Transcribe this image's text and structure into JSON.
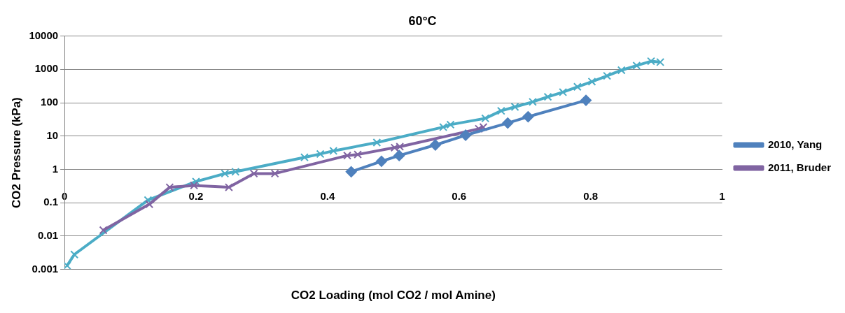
{
  "chart_data": {
    "type": "line",
    "title": "60°C",
    "xlabel": "CO2 Loading (mol CO2 / mol Amine)",
    "ylabel": "CO2 Pressure (kPa)",
    "xlim": [
      0,
      1
    ],
    "xticks": [
      0,
      0.2,
      0.4,
      0.6,
      0.8,
      1
    ],
    "ylim": [
      0.001,
      10000
    ],
    "yticks": [
      0.001,
      0.01,
      0.1,
      1,
      10,
      100,
      1000,
      10000
    ],
    "log": "y",
    "grid": "y",
    "legend": "right",
    "line_style": "solid",
    "series": [
      {
        "name": "2010, Yang",
        "color": "#4f81bd",
        "marker": "diamond",
        "x": [
          0.436,
          0.482,
          0.509,
          0.564,
          0.61,
          0.674,
          0.705,
          0.793
        ],
        "values": [
          0.85,
          1.75,
          2.6,
          5.4,
          10.6,
          24.6,
          38,
          118
        ]
      },
      {
        "name": "2011, Bruder",
        "color": "#8064a2",
        "marker": "cross",
        "x": [
          0.059,
          0.129,
          0.16,
          0.197,
          0.25,
          0.288,
          0.32,
          0.43,
          0.446,
          0.502,
          0.51,
          0.63,
          0.637
        ],
        "values": [
          0.015,
          0.09,
          0.29,
          0.33,
          0.29,
          0.75,
          0.75,
          2.6,
          2.8,
          4.5,
          4.8,
          16.5,
          18.6
        ]
      },
      {
        "color": "#4bacc6",
        "marker": "cross",
        "x": [
          0.004,
          0.015,
          0.127,
          0.2,
          0.244,
          0.26,
          0.365,
          0.389,
          0.409,
          0.475,
          0.576,
          0.587,
          0.64,
          0.664,
          0.685,
          0.712,
          0.735,
          0.758,
          0.78,
          0.802,
          0.825,
          0.847,
          0.87,
          0.892,
          0.906
        ],
        "values": [
          0.0013,
          0.0028,
          0.12,
          0.43,
          0.75,
          0.85,
          2.3,
          2.9,
          3.6,
          6.4,
          18.6,
          22,
          34,
          57,
          75,
          106,
          150,
          207,
          300,
          430,
          640,
          945,
          1300,
          1760,
          1650
        ]
      }
    ]
  }
}
